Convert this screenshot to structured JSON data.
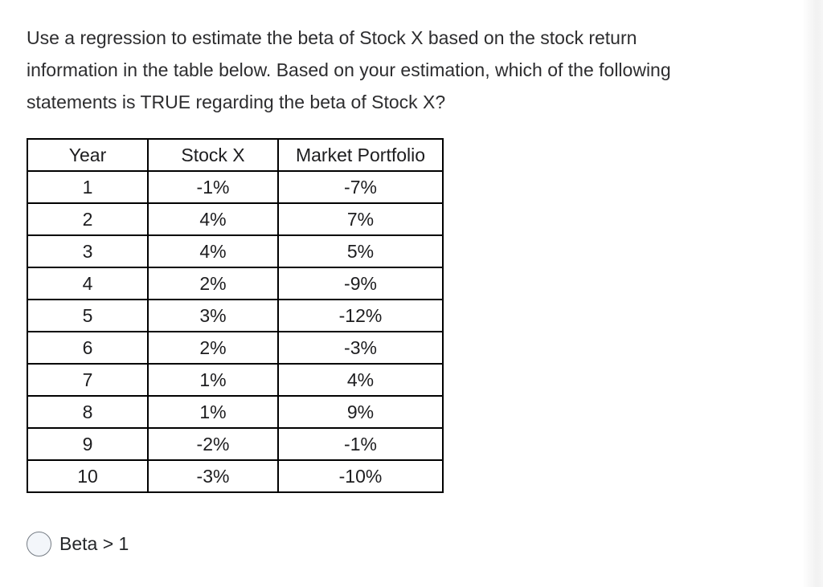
{
  "question": {
    "lines": [
      "Use a regression to estimate the beta of Stock X based on the stock return",
      "information in the table below. Based on your estimation, which of the following",
      "statements is TRUE regarding the beta of Stock X?"
    ],
    "full_text": "Use a regression to estimate the beta of Stock X based on the stock return information in the table below. Based on your estimation, which of the following statements is TRUE regarding the beta of Stock X?"
  },
  "table": {
    "headers": [
      "Year",
      "Stock X",
      "Market Portfolio"
    ],
    "rows": [
      [
        "1",
        "-1%",
        "-7%"
      ],
      [
        "2",
        "4%",
        "7%"
      ],
      [
        "3",
        "4%",
        "5%"
      ],
      [
        "4",
        "2%",
        "-9%"
      ],
      [
        "5",
        "3%",
        "-12%"
      ],
      [
        "6",
        "2%",
        "-3%"
      ],
      [
        "7",
        "1%",
        "4%"
      ],
      [
        "8",
        "1%",
        "9%"
      ],
      [
        "9",
        "-2%",
        "-1%"
      ],
      [
        "10",
        "-3%",
        "-10%"
      ]
    ]
  },
  "options": [
    {
      "label": "Beta > 1",
      "selected": false
    }
  ],
  "colors": {
    "page_bg": "#ffffff",
    "question_text": "#2d2d2f",
    "table_border": "#000000",
    "table_text": "#1d1d1f",
    "radio_border": "#757c84",
    "radio_fill": "#f3f6fa"
  }
}
